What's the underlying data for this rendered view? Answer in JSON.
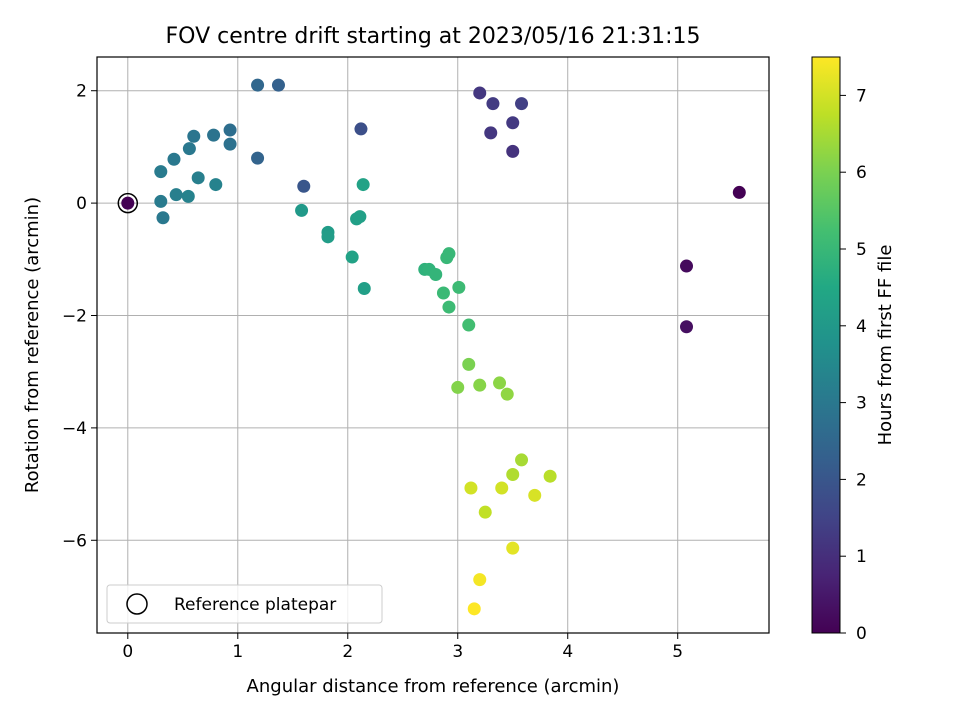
{
  "chart_data": {
    "type": "scatter",
    "title": "FOV centre drift starting at 2023/05/16 21:31:15",
    "xlabel": "Angular distance from reference (arcmin)",
    "ylabel": "Rotation from reference (arcmin)",
    "xlim": [
      -0.28,
      5.83
    ],
    "ylim": [
      -7.65,
      2.6
    ],
    "x_ticks": [
      0,
      1,
      2,
      3,
      4,
      5
    ],
    "y_ticks": [
      -6,
      -4,
      -2,
      0,
      2
    ],
    "grid": true,
    "colormap": "viridis",
    "colorbar": {
      "label": "Hours from first FF file",
      "range": [
        0,
        7.5
      ],
      "ticks": [
        0,
        1,
        2,
        3,
        4,
        5,
        6,
        7
      ]
    },
    "legend": {
      "placement": "lower-left",
      "entries": [
        {
          "label": "Reference platepar",
          "marker": "open-circle"
        }
      ]
    },
    "reference_point": {
      "x": 0,
      "y": 0,
      "hours": 0
    },
    "points": [
      {
        "x": 5.56,
        "y": 0.19,
        "hours": 0.0
      },
      {
        "x": 5.08,
        "y": -1.12,
        "hours": 0.2
      },
      {
        "x": 5.08,
        "y": -2.2,
        "hours": 0.3
      },
      {
        "x": 3.5,
        "y": 0.92,
        "hours": 1.1
      },
      {
        "x": 3.3,
        "y": 1.25,
        "hours": 1.2
      },
      {
        "x": 3.5,
        "y": 1.43,
        "hours": 1.25
      },
      {
        "x": 3.32,
        "y": 1.77,
        "hours": 1.3
      },
      {
        "x": 3.58,
        "y": 1.77,
        "hours": 1.4
      },
      {
        "x": 3.2,
        "y": 1.96,
        "hours": 1.2
      },
      {
        "x": 2.12,
        "y": 1.32,
        "hours": 1.8
      },
      {
        "x": 1.6,
        "y": 0.3,
        "hours": 2.0
      },
      {
        "x": 1.37,
        "y": 2.1,
        "hours": 2.3
      },
      {
        "x": 1.18,
        "y": 2.1,
        "hours": 2.5
      },
      {
        "x": 1.18,
        "y": 0.8,
        "hours": 2.4
      },
      {
        "x": 0.93,
        "y": 1.3,
        "hours": 2.7
      },
      {
        "x": 0.93,
        "y": 1.05,
        "hours": 2.8
      },
      {
        "x": 0.6,
        "y": 1.19,
        "hours": 2.9
      },
      {
        "x": 0.56,
        "y": 0.97,
        "hours": 3.0
      },
      {
        "x": 0.78,
        "y": 1.21,
        "hours": 2.85
      },
      {
        "x": 0.42,
        "y": 0.78,
        "hours": 3.0
      },
      {
        "x": 0.3,
        "y": 0.56,
        "hours": 3.1
      },
      {
        "x": 0.64,
        "y": 0.45,
        "hours": 3.2
      },
      {
        "x": 0.8,
        "y": 0.33,
        "hours": 3.3
      },
      {
        "x": 0.44,
        "y": 0.15,
        "hours": 3.2
      },
      {
        "x": 0.55,
        "y": 0.12,
        "hours": 3.3
      },
      {
        "x": 0.3,
        "y": 0.03,
        "hours": 3.1
      },
      {
        "x": 0.32,
        "y": -0.26,
        "hours": 3.0
      },
      {
        "x": 1.58,
        "y": -0.13,
        "hours": 4.0
      },
      {
        "x": 1.82,
        "y": -0.52,
        "hours": 4.1
      },
      {
        "x": 1.82,
        "y": -0.6,
        "hours": 4.15
      },
      {
        "x": 2.08,
        "y": -0.28,
        "hours": 4.2
      },
      {
        "x": 2.11,
        "y": -0.24,
        "hours": 4.25
      },
      {
        "x": 2.14,
        "y": 0.33,
        "hours": 4.3
      },
      {
        "x": 2.04,
        "y": -0.96,
        "hours": 4.3
      },
      {
        "x": 2.15,
        "y": -1.52,
        "hours": 4.2
      },
      {
        "x": 2.7,
        "y": -1.18,
        "hours": 4.8
      },
      {
        "x": 2.74,
        "y": -1.18,
        "hours": 4.85
      },
      {
        "x": 2.8,
        "y": -1.27,
        "hours": 4.9
      },
      {
        "x": 2.9,
        "y": -0.97,
        "hours": 5.0
      },
      {
        "x": 2.92,
        "y": -0.9,
        "hours": 5.0
      },
      {
        "x": 2.87,
        "y": -1.6,
        "hours": 5.05
      },
      {
        "x": 2.92,
        "y": -1.85,
        "hours": 5.1
      },
      {
        "x": 3.01,
        "y": -1.5,
        "hours": 5.1
      },
      {
        "x": 3.1,
        "y": -2.17,
        "hours": 5.2
      },
      {
        "x": 3.1,
        "y": -2.87,
        "hours": 6.0
      },
      {
        "x": 3.0,
        "y": -3.28,
        "hours": 6.1
      },
      {
        "x": 3.2,
        "y": -3.24,
        "hours": 6.15
      },
      {
        "x": 3.38,
        "y": -3.2,
        "hours": 6.2
      },
      {
        "x": 3.45,
        "y": -3.4,
        "hours": 6.25
      },
      {
        "x": 3.58,
        "y": -4.57,
        "hours": 6.5
      },
      {
        "x": 3.5,
        "y": -4.83,
        "hours": 6.6
      },
      {
        "x": 3.84,
        "y": -4.86,
        "hours": 6.7
      },
      {
        "x": 3.12,
        "y": -5.07,
        "hours": 7.0
      },
      {
        "x": 3.4,
        "y": -5.07,
        "hours": 7.0
      },
      {
        "x": 3.7,
        "y": -5.2,
        "hours": 7.05
      },
      {
        "x": 3.25,
        "y": -5.5,
        "hours": 6.8
      },
      {
        "x": 3.5,
        "y": -6.14,
        "hours": 7.2
      },
      {
        "x": 3.2,
        "y": -6.7,
        "hours": 7.4
      },
      {
        "x": 3.15,
        "y": -7.22,
        "hours": 7.5
      }
    ]
  }
}
